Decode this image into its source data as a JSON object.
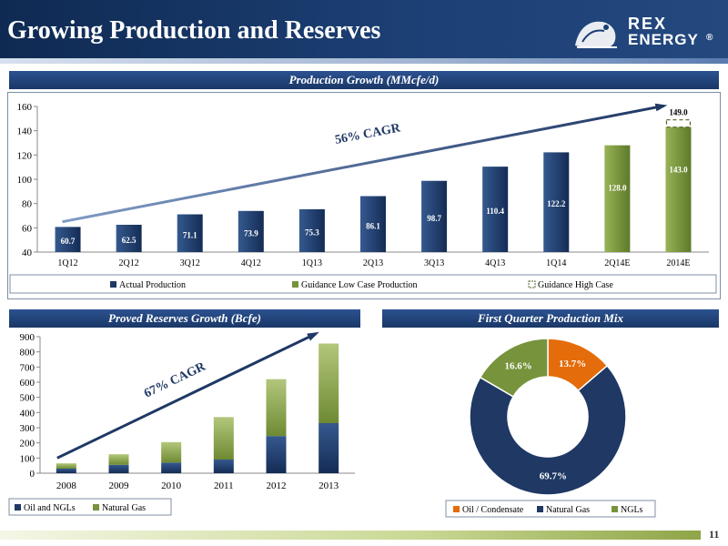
{
  "header": {
    "title": "Growing Production and Reserves",
    "logo_line1": "REX",
    "logo_line2": "ENERGY",
    "logo_mark": "®"
  },
  "page_number": "11",
  "colors": {
    "navy": "#1f3864",
    "green": "#77933c",
    "orange": "#e46c0a",
    "banner": "#1f3f73"
  },
  "production_chart": {
    "banner": "Production Growth (MMcfe/d)",
    "cagr_label": "56% CAGR",
    "guidance_high_label": "149.0",
    "legend": [
      "Actual Production",
      "Guidance Low Case Production",
      "Guidance High Case"
    ]
  },
  "reserves_chart": {
    "banner": "Proved Reserves Growth (Bcfe)",
    "cagr_label": "67% CAGR",
    "legend": [
      "Oil and NGLs",
      "Natural Gas"
    ]
  },
  "mix_chart": {
    "banner": "First Quarter Production Mix",
    "legend": [
      "Oil / Condensate",
      "Natural Gas",
      "NGLs"
    ]
  },
  "chart_data": [
    {
      "type": "bar",
      "title": "Production Growth (MMcfe/d)",
      "categories": [
        "1Q12",
        "2Q12",
        "3Q12",
        "4Q12",
        "1Q13",
        "2Q13",
        "3Q13",
        "4Q13",
        "1Q14",
        "2Q14E",
        "2014E"
      ],
      "series": [
        {
          "name": "Actual Production",
          "values": [
            60.7,
            62.5,
            71.1,
            73.9,
            75.3,
            86.1,
            98.7,
            110.4,
            122.2,
            null,
            null
          ]
        },
        {
          "name": "Guidance Low Case Production",
          "values": [
            null,
            null,
            null,
            null,
            null,
            null,
            null,
            null,
            null,
            128.0,
            143.0
          ]
        },
        {
          "name": "Guidance High Case",
          "values": [
            null,
            null,
            null,
            null,
            null,
            null,
            null,
            null,
            null,
            null,
            149.0
          ]
        }
      ],
      "data_labels": [
        "60.7",
        "62.5",
        "71.1",
        "73.9",
        "75.3",
        "86.1",
        "98.7",
        "110.4",
        "122.2",
        "128.0",
        "143.0"
      ],
      "ylim": [
        40,
        160
      ],
      "yticks": [
        40,
        60,
        80,
        100,
        120,
        140,
        160
      ],
      "legend_position": "bottom"
    },
    {
      "type": "bar",
      "stacked": true,
      "title": "Proved Reserves Growth (Bcfe)",
      "categories": [
        "2008",
        "2009",
        "2010",
        "2011",
        "2012",
        "2013"
      ],
      "series": [
        {
          "name": "Oil and NGLs",
          "values": [
            30,
            55,
            70,
            90,
            245,
            330
          ]
        },
        {
          "name": "Natural Gas",
          "values": [
            35,
            70,
            135,
            280,
            375,
            525
          ]
        }
      ],
      "ylim": [
        0,
        900
      ],
      "yticks": [
        0,
        100,
        200,
        300,
        400,
        500,
        600,
        700,
        800,
        900
      ],
      "legend_position": "bottom"
    },
    {
      "type": "pie",
      "donut": true,
      "title": "First Quarter Production Mix",
      "labels": [
        "Oil / Condensate",
        "Natural Gas",
        "NGLs"
      ],
      "values": [
        13.7,
        69.7,
        16.6
      ],
      "value_labels": [
        "13.7%",
        "69.7%",
        "16.6%"
      ],
      "legend_position": "bottom"
    }
  ]
}
